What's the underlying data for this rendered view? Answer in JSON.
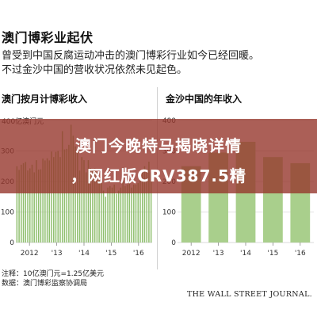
{
  "title": "澳门博彩业起伏",
  "subtitle_line1": "曾受到中国反腐运动冲击的澳门博彩行业如今已经回暖。",
  "subtitle_line2": "不过金沙中国的营收状况依然未见起色。",
  "unit_label": "400亿澳门元",
  "footnote_line1": "注释：10亿澳门元=1.25亿美元",
  "footnote_line2": "数据：澳门博彩监察协调局",
  "source_logo": "THE WALL STREET JOURNAL.",
  "overlay": {
    "line1": "澳门今晚特马揭晓详情",
    "line2": "，网红版CRV387.5精"
  },
  "colors": {
    "bar": "#8fbf6e",
    "bar_light": "#a9cf8c",
    "grid": "#d9d9d9",
    "banner": "#96372d"
  },
  "chart_data": [
    {
      "type": "bar",
      "title": "澳门按月计博彩收入",
      "ylabel": "400亿澳门元",
      "ylim": [
        0,
        400
      ],
      "yticks": [
        0,
        100,
        200,
        300,
        400
      ],
      "xticks": [
        "2012",
        "'13",
        "'14",
        "'15",
        "'16"
      ],
      "x": [
        "2012-01",
        "2012-02",
        "2012-03",
        "2012-04",
        "2012-05",
        "2012-06",
        "2012-07",
        "2012-08",
        "2012-09",
        "2012-10",
        "2012-11",
        "2012-12",
        "2013-01",
        "2013-02",
        "2013-03",
        "2013-04",
        "2013-05",
        "2013-06",
        "2013-07",
        "2013-08",
        "2013-09",
        "2013-10",
        "2013-11",
        "2013-12",
        "2014-01",
        "2014-02",
        "2014-03",
        "2014-04",
        "2014-05",
        "2014-06",
        "2014-07",
        "2014-08",
        "2014-09",
        "2014-10",
        "2014-11",
        "2014-12",
        "2015-01",
        "2015-02",
        "2015-03",
        "2015-04",
        "2015-05",
        "2015-06",
        "2015-07",
        "2015-08",
        "2015-09",
        "2015-10",
        "2015-11",
        "2015-12",
        "2016-01",
        "2016-02",
        "2016-03",
        "2016-04",
        "2016-05",
        "2016-06",
        "2016-07",
        "2016-08",
        "2016-09",
        "2016-10",
        "2016-11",
        "2016-12",
        "2017-01",
        "2017-02",
        "2017-03"
      ],
      "values": [
        250,
        238,
        255,
        260,
        264,
        236,
        243,
        255,
        230,
        270,
        239,
        240,
        275,
        269,
        276,
        269,
        298,
        280,
        297,
        300,
        280,
        365,
        305,
        307,
        320,
        386,
        350,
        315,
        300,
        236,
        280,
        270,
        230,
        270,
        244,
        240,
        243,
        232,
        215,
        225,
        170,
        150,
        180,
        185,
        180,
        190,
        160,
        170,
        180,
        200,
        185,
        190,
        200,
        180,
        190,
        190,
        195,
        215,
        230,
        250,
        240,
        265,
        230
      ]
    },
    {
      "type": "bar",
      "title": "金沙中国的年收入",
      "ylim": [
        0,
        400
      ],
      "yticks": [
        0,
        100,
        200,
        300,
        400
      ],
      "xticks": [
        "2012",
        "'13",
        "'14",
        "'15",
        "'16"
      ],
      "x": [
        "2012",
        "2013",
        "2014",
        "2015",
        "2016"
      ],
      "values": [
        250,
        295,
        330,
        280,
        260
      ]
    }
  ]
}
